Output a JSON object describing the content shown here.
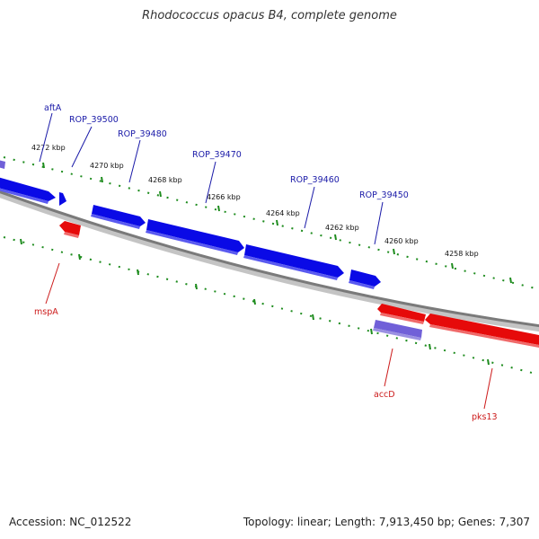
{
  "title": "Rhodococcus opacus B4, complete genome",
  "footer": {
    "accession": "Accession: NC_012522",
    "summary": "Topology: linear; Length: 7,913,450 bp; Genes: 7,307"
  },
  "colors": {
    "forward_gene": "#0a0ae6",
    "reverse_gene": "#e60a0a",
    "rna_gene": "#7060d8",
    "backbone": "#777777",
    "tick_marks": "#1e8c1e",
    "forward_label": "#1a1aa8",
    "reverse_label": "#cc1a1a"
  },
  "scale_ticks": [
    {
      "label": "4272 kbp"
    },
    {
      "label": "4270 kbp"
    },
    {
      "label": "4268 kbp"
    },
    {
      "label": "4266 kbp"
    },
    {
      "label": "4264 kbp"
    },
    {
      "label": "4262 kbp"
    },
    {
      "label": "4260 kbp"
    },
    {
      "label": "4258 kbp"
    }
  ],
  "gene_labels": {
    "forward": [
      "aftA",
      "ROP_39500",
      "ROP_39480",
      "ROP_39470",
      "ROP_39460",
      "ROP_39450"
    ],
    "reverse": [
      "mspA",
      "accD",
      "pks13"
    ]
  }
}
